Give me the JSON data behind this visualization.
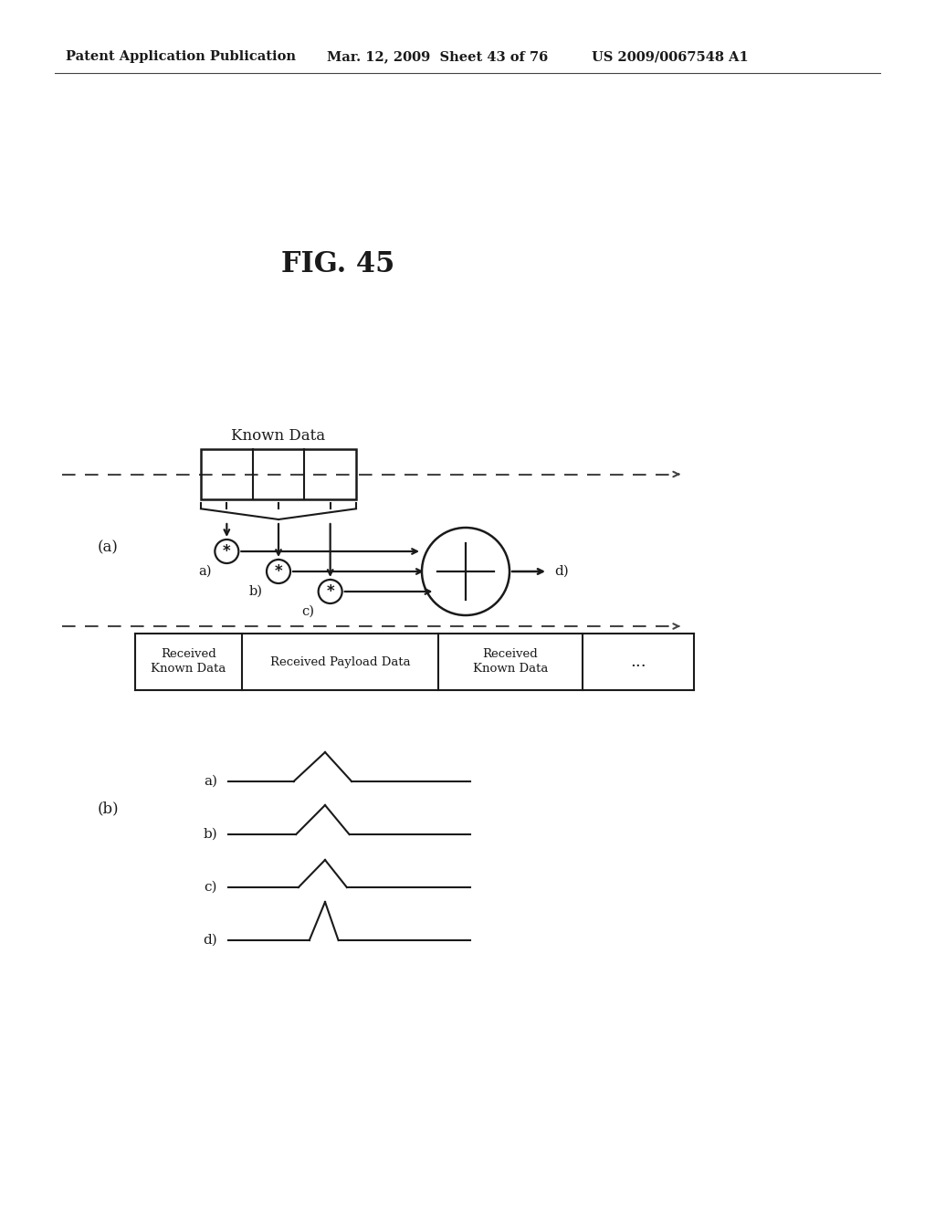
{
  "title": "FIG. 45",
  "header_left": "Patent Application Publication",
  "header_mid": "Mar. 12, 2009  Sheet 43 of 76",
  "header_right": "US 2009/0067548 A1",
  "background_color": "#ffffff",
  "text_color": "#1a1a1a",
  "label_a": "(a)",
  "label_b": "(b)",
  "known_data_label": "Known Data",
  "table_col1": "Received\nKnown Data",
  "table_col2": "Received Payload Data",
  "table_col3": "Received\nKnown Data",
  "table_col4": "...",
  "sig_labels": [
    "a)",
    "b)",
    "c)",
    "d)"
  ]
}
